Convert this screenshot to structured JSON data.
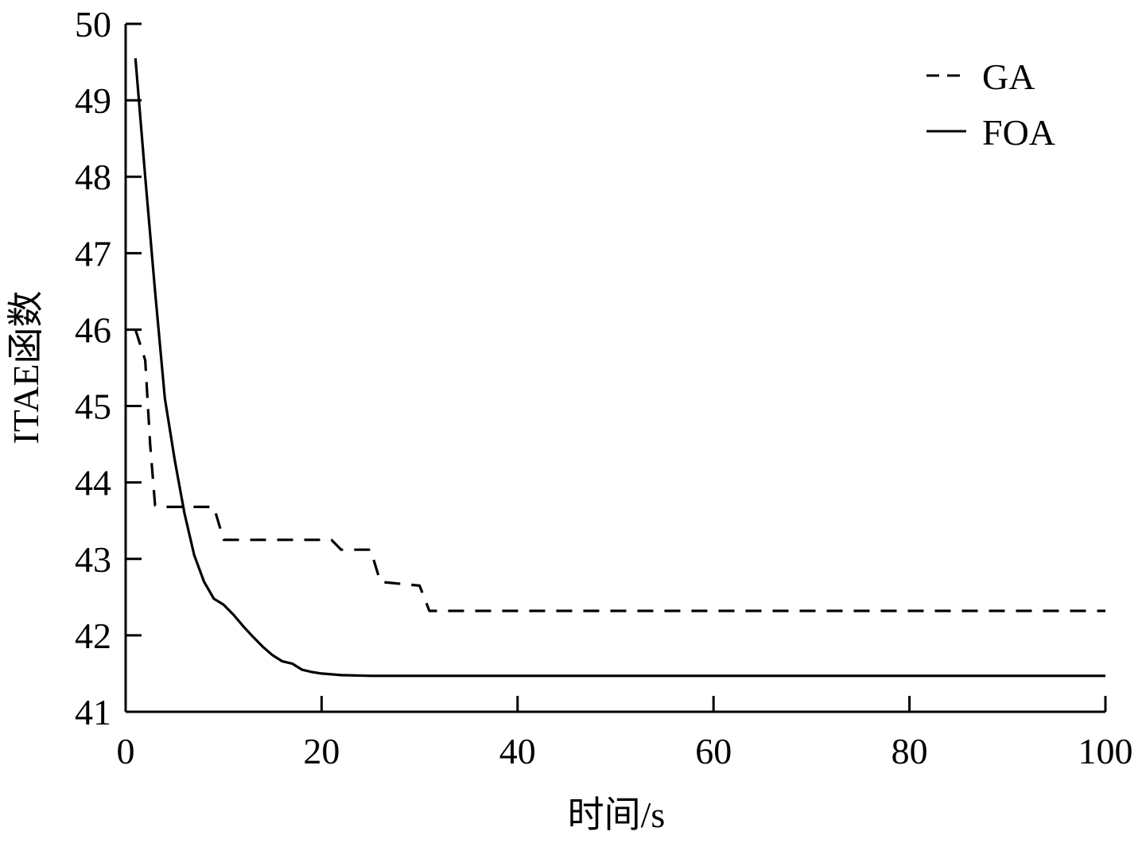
{
  "chart_data": {
    "type": "line",
    "title": "",
    "xlabel": "时间/s",
    "ylabel": "ITAE函数",
    "xlim": [
      0,
      100
    ],
    "ylim": [
      41,
      50
    ],
    "xticks": [
      0,
      20,
      40,
      60,
      80,
      100
    ],
    "yticks": [
      41,
      42,
      43,
      44,
      45,
      46,
      47,
      48,
      49,
      50
    ],
    "grid": false,
    "legend": {
      "position": "top-right"
    },
    "series": [
      {
        "name": "GA",
        "style": "dashed",
        "color": "#000000",
        "x": [
          1,
          2,
          2.5,
          3,
          4,
          9,
          10,
          21,
          22,
          25,
          26,
          30,
          31,
          100
        ],
        "y": [
          46.0,
          45.6,
          44.5,
          43.7,
          43.68,
          43.68,
          43.25,
          43.25,
          43.12,
          43.12,
          42.7,
          42.65,
          42.32,
          42.32
        ]
      },
      {
        "name": "FOA",
        "style": "solid",
        "color": "#000000",
        "x": [
          1,
          2,
          3,
          4,
          5,
          6,
          7,
          8,
          9,
          10,
          11,
          12,
          13,
          14,
          15,
          16,
          17,
          18,
          19,
          20,
          21,
          22,
          25,
          30,
          100
        ],
        "y": [
          49.55,
          48.0,
          46.5,
          45.1,
          44.3,
          43.6,
          43.05,
          42.7,
          42.48,
          42.4,
          42.27,
          42.12,
          41.98,
          41.85,
          41.74,
          41.66,
          41.63,
          41.55,
          41.52,
          41.5,
          41.49,
          41.48,
          41.47,
          41.47,
          41.47
        ]
      }
    ]
  }
}
